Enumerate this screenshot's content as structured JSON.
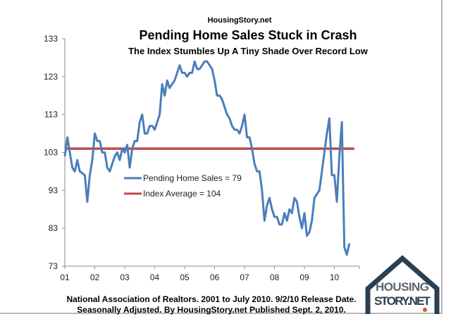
{
  "site_label": "HousingStory.net",
  "chart_data": {
    "type": "line",
    "title": "Pending Home Sales Stuck in Crash",
    "subtitle": "The Index Stumbles Up A Tiny Shade Over Record Low",
    "x_tick_labels": [
      "01",
      "02",
      "03",
      "04",
      "05",
      "06",
      "07",
      "08",
      "09",
      "10"
    ],
    "y_tick_labels": [
      "133",
      "123",
      "113",
      "103",
      "93",
      "83",
      "73"
    ],
    "ylim": [
      73,
      133
    ],
    "x_range": [
      "2001-01",
      "2010-07"
    ],
    "frequency": "monthly",
    "grid": false,
    "legend_placement": "center-left",
    "series": [
      {
        "name": "Pending Home Sales = 79",
        "color": "#4a7ebb",
        "start": "2001-01",
        "values": [
          102,
          107,
          103,
          99,
          98,
          101,
          98,
          97.5,
          97,
          90,
          97,
          101,
          108,
          106,
          106,
          103,
          103,
          99,
          98,
          100,
          102,
          103,
          101,
          104,
          103,
          105,
          99,
          104,
          106,
          106,
          111,
          113,
          108,
          108,
          110,
          110,
          109,
          111,
          113,
          121,
          118,
          122,
          120,
          121,
          122,
          124,
          126,
          124,
          124,
          123,
          124,
          124,
          127,
          125,
          125,
          126,
          127,
          127,
          126,
          125,
          122,
          118,
          118,
          117,
          115,
          113,
          112,
          110,
          109,
          109,
          108,
          110,
          113,
          107,
          107,
          104,
          100,
          98,
          98,
          93,
          85,
          89,
          91,
          88,
          86,
          86,
          84,
          84,
          87,
          85,
          88,
          87,
          91,
          90,
          86,
          83,
          87,
          81,
          82,
          85,
          91,
          92,
          93,
          98,
          103,
          108,
          112,
          97,
          97,
          90,
          102,
          111,
          78,
          76,
          79
        ]
      },
      {
        "name": "Index Average = 104",
        "color": "#be4b48",
        "constant": 104
      }
    ]
  },
  "footer": {
    "line1": "National Association of Realtors. 2001 to July 2010. 9/2/10 Release Date.",
    "line2": "Seasonally Adjusted. By HousingStory.net Published Sept. 2, 2010."
  },
  "logo": {
    "line1": "HOUSING",
    "line2": "STORY.NET",
    "color": "#2b3f52"
  }
}
